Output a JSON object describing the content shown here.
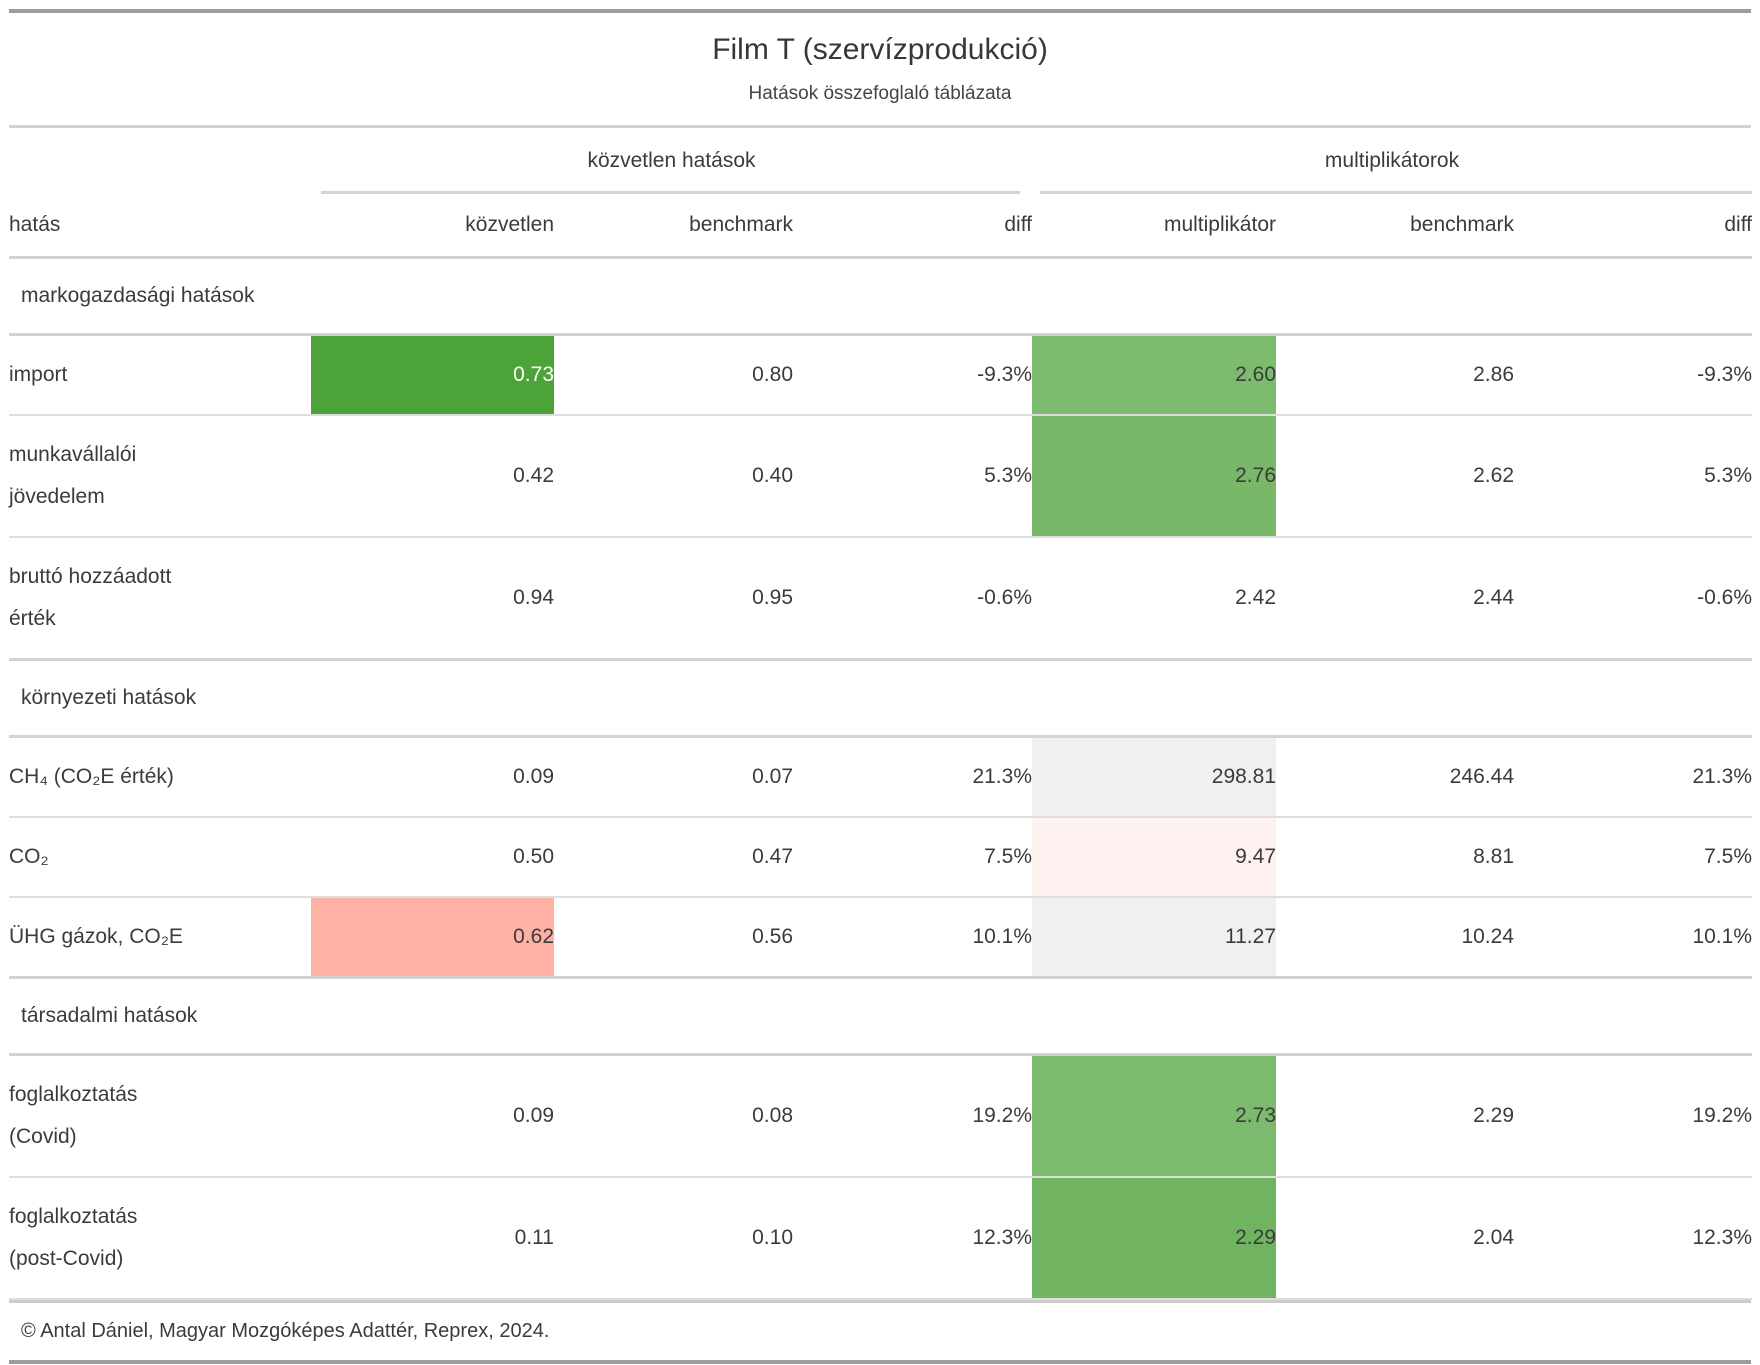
{
  "table": {
    "title": "Film T (szervízprodukció)",
    "subtitle": "Hatások összefoglaló táblázata",
    "spanners": {
      "direct": "közvetlen hatások",
      "multipliers": "multiplikátorok"
    },
    "columns": [
      "hatás",
      "közvetlen",
      "benchmark",
      "diff",
      "multiplikátor",
      "benchmark",
      "diff"
    ],
    "rows": [
      {
        "type": "section",
        "label": "markogazdasági hatások"
      },
      {
        "type": "data",
        "label": "import",
        "cells": [
          {
            "v": "0.73",
            "bg": "#4ca439",
            "fg": "#ffffff"
          },
          {
            "v": "0.80"
          },
          {
            "v": "-9.3%"
          },
          {
            "v": "2.60",
            "bg": "#7dbb6e"
          },
          {
            "v": "2.86"
          },
          {
            "v": "-9.3%"
          }
        ]
      },
      {
        "type": "data",
        "label": "munkavállalói\njövedelem",
        "cells": [
          {
            "v": "0.42"
          },
          {
            "v": "0.40"
          },
          {
            "v": "5.3%"
          },
          {
            "v": "2.76",
            "bg": "#79b869"
          },
          {
            "v": "2.62"
          },
          {
            "v": "5.3%"
          }
        ]
      },
      {
        "type": "data",
        "label": "bruttó hozzáadott\nérték",
        "cells": [
          {
            "v": "0.94"
          },
          {
            "v": "0.95"
          },
          {
            "v": "-0.6%"
          },
          {
            "v": "2.42"
          },
          {
            "v": "2.44"
          },
          {
            "v": "-0.6%"
          }
        ]
      },
      {
        "type": "section",
        "label": "környezeti hatások"
      },
      {
        "type": "data",
        "label": "CH₄ (CO₂E érték)",
        "cells": [
          {
            "v": "0.09"
          },
          {
            "v": "0.07"
          },
          {
            "v": "21.3%"
          },
          {
            "v": "298.81",
            "bg": "#f0f0f0"
          },
          {
            "v": "246.44"
          },
          {
            "v": "21.3%"
          }
        ]
      },
      {
        "type": "data",
        "label": "CO₂",
        "cells": [
          {
            "v": "0.50"
          },
          {
            "v": "0.47"
          },
          {
            "v": "7.5%"
          },
          {
            "v": "9.47",
            "bg": "#fdf2ef"
          },
          {
            "v": "8.81"
          },
          {
            "v": "7.5%"
          }
        ]
      },
      {
        "type": "data",
        "label": "ÜHG gázok, CO₂E",
        "cells": [
          {
            "v": "0.62",
            "bg": "#ffb1a3"
          },
          {
            "v": "0.56"
          },
          {
            "v": "10.1%"
          },
          {
            "v": "11.27",
            "bg": "#f0f0f0"
          },
          {
            "v": "10.24"
          },
          {
            "v": "10.1%"
          }
        ]
      },
      {
        "type": "section",
        "label": "társadalmi hatások"
      },
      {
        "type": "data",
        "label": "foglalkoztatás\n(Covid)",
        "cells": [
          {
            "v": "0.09"
          },
          {
            "v": "0.08"
          },
          {
            "v": "19.2%"
          },
          {
            "v": "2.73",
            "bg": "#7cba6d"
          },
          {
            "v": "2.29"
          },
          {
            "v": "19.2%"
          }
        ]
      },
      {
        "type": "data",
        "label": "foglalkoztatás\n(post-Covid)",
        "cells": [
          {
            "v": "0.11"
          },
          {
            "v": "0.10"
          },
          {
            "v": "12.3%"
          },
          {
            "v": "2.29",
            "bg": "#70b461"
          },
          {
            "v": "2.04"
          },
          {
            "v": "12.3%"
          }
        ]
      }
    ],
    "footer": "© Antal Dániel, Magyar Mozgóképes Adattér, Reprex, 2024."
  },
  "colors": {
    "highlight_green_strong": "#4ca439",
    "highlight_green_light": "#7dbb6e",
    "highlight_salmon": "#ffb1a3",
    "highlight_gray": "#f0f0f0",
    "highlight_pink": "#fdf2ef",
    "border_light": "#d3d3d3",
    "border_heavy": "#9d9d9d",
    "text": "#3b3b3b"
  },
  "chart_data": {
    "type": "table",
    "title": "Film T (szervízprodukció)",
    "subtitle": "Hatások összefoglaló táblázata",
    "column_groups": [
      "közvetlen hatások",
      "multiplikátorok"
    ],
    "columns": [
      "hatás",
      "közvetlen",
      "benchmark",
      "diff",
      "multiplikátor",
      "benchmark",
      "diff"
    ],
    "sections": [
      {
        "name": "markogazdasági hatások",
        "rows": [
          {
            "hatás": "import",
            "közvetlen": 0.73,
            "benchmark": 0.8,
            "diff": "-9.3%",
            "multiplikátor": 2.6,
            "m_benchmark": 2.86,
            "m_diff": "-9.3%"
          },
          {
            "hatás": "munkavállalói jövedelem",
            "közvetlen": 0.42,
            "benchmark": 0.4,
            "diff": "5.3%",
            "multiplikátor": 2.76,
            "m_benchmark": 2.62,
            "m_diff": "5.3%"
          },
          {
            "hatás": "bruttó hozzáadott érték",
            "közvetlen": 0.94,
            "benchmark": 0.95,
            "diff": "-0.6%",
            "multiplikátor": 2.42,
            "m_benchmark": 2.44,
            "m_diff": "-0.6%"
          }
        ]
      },
      {
        "name": "környezeti hatások",
        "rows": [
          {
            "hatás": "CH₄ (CO₂E érték)",
            "közvetlen": 0.09,
            "benchmark": 0.07,
            "diff": "21.3%",
            "multiplikátor": 298.81,
            "m_benchmark": 246.44,
            "m_diff": "21.3%"
          },
          {
            "hatás": "CO₂",
            "közvetlen": 0.5,
            "benchmark": 0.47,
            "diff": "7.5%",
            "multiplikátor": 9.47,
            "m_benchmark": 8.81,
            "m_diff": "7.5%"
          },
          {
            "hatás": "ÜHG gázok, CO₂E",
            "közvetlen": 0.62,
            "benchmark": 0.56,
            "diff": "10.1%",
            "multiplikátor": 11.27,
            "m_benchmark": 10.24,
            "m_diff": "10.1%"
          }
        ]
      },
      {
        "name": "társadalmi hatások",
        "rows": [
          {
            "hatás": "foglalkoztatás (Covid)",
            "közvetlen": 0.09,
            "benchmark": 0.08,
            "diff": "19.2%",
            "multiplikátor": 2.73,
            "m_benchmark": 2.29,
            "m_diff": "19.2%"
          },
          {
            "hatás": "foglalkoztatás (post-Covid)",
            "közvetlen": 0.11,
            "benchmark": 0.1,
            "diff": "12.3%",
            "multiplikátor": 2.29,
            "m_benchmark": 2.04,
            "m_diff": "12.3%"
          }
        ]
      }
    ],
    "footer": "© Antal Dániel, Magyar Mozgóképes Adattér, Reprex, 2024."
  }
}
